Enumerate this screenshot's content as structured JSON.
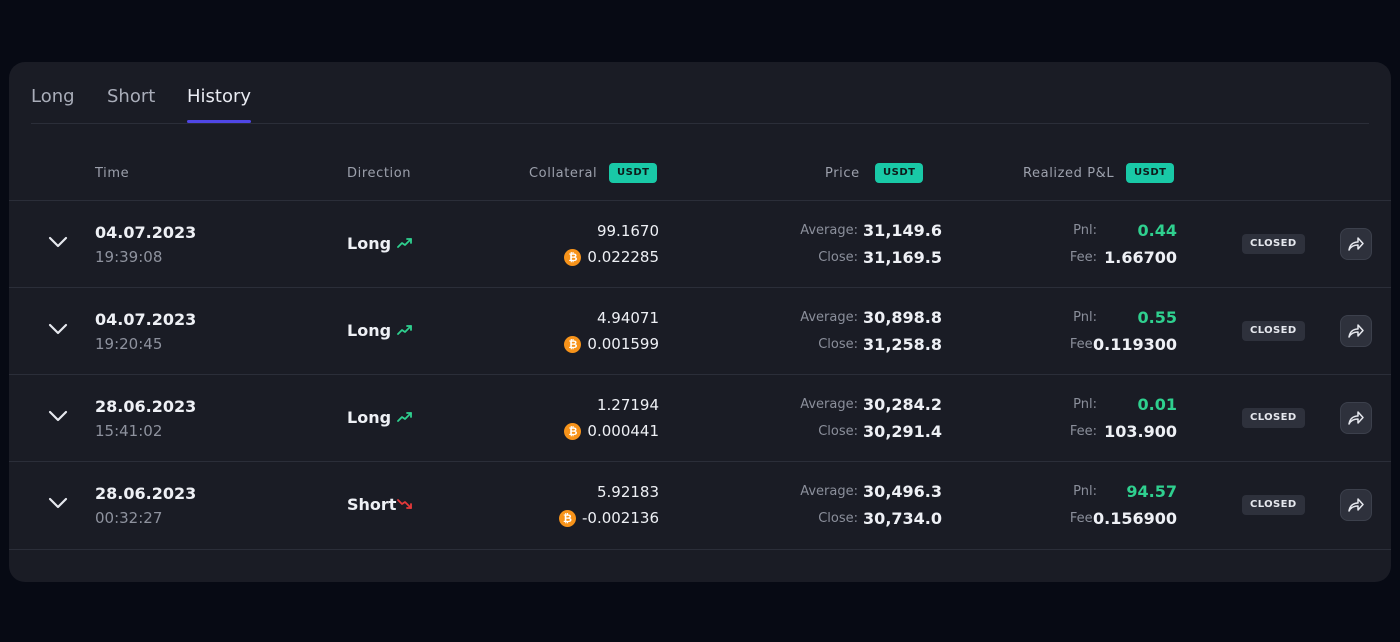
{
  "tabs": [
    {
      "label": "Long",
      "active": false
    },
    {
      "label": "Short",
      "active": false
    },
    {
      "label": "History",
      "active": true
    }
  ],
  "table": {
    "headers": {
      "time": "Time",
      "direction": "Direction",
      "collateral": "Collateral",
      "collateral_badge": "USDT",
      "price": "Price",
      "price_badge": "USDT",
      "pnl": "Realized P&L",
      "pnl_badge": "USDT"
    },
    "labels": {
      "average": "Average:",
      "close": "Close:",
      "pnl": "Pnl:",
      "fee": "Fee:",
      "btc_symbol": "₿"
    },
    "rows": [
      {
        "date": "04.07.2023",
        "time": "19:39:08",
        "direction": "Long",
        "trend": "up",
        "collateral": "99.1670",
        "btc": "0.022285",
        "average": "31,149.6",
        "close": "31,169.5",
        "pnl": "0.44",
        "fee": "1.66700",
        "status": "CLOSED"
      },
      {
        "date": "04.07.2023",
        "time": "19:20:45",
        "direction": "Long",
        "trend": "up",
        "collateral": "4.94071",
        "btc": "0.001599",
        "average": "30,898.8",
        "close": "31,258.8",
        "pnl": "0.55",
        "fee": "0.119300",
        "status": "CLOSED"
      },
      {
        "date": "28.06.2023",
        "time": "15:41:02",
        "direction": "Long",
        "trend": "up",
        "collateral": "1.27194",
        "btc": "0.000441",
        "average": "30,284.2",
        "close": "30,291.4",
        "pnl": "0.01",
        "fee": "103.900",
        "status": "CLOSED"
      },
      {
        "date": "28.06.2023",
        "time": "00:32:27",
        "direction": "Short",
        "trend": "down",
        "collateral": "5.92183",
        "btc": "-0.002136",
        "average": "30,496.3",
        "close": "30,734.0",
        "pnl": "94.57",
        "fee": "0.156900",
        "status": "CLOSED"
      }
    ]
  },
  "colors": {
    "accent": "#4f46e5",
    "badge": "#19c9a7",
    "positive": "#2fd08f",
    "negative": "#e5393a",
    "btc": "#f7931a"
  }
}
